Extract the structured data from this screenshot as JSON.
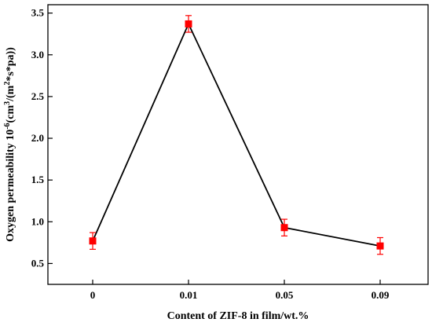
{
  "chart_data": {
    "type": "line",
    "xlabel": "Content of ZIF-8 in film/wt.%",
    "ylabel_parts": {
      "a": "Oxygen permeability 10",
      "a_sup": "-6",
      "b": "(cm",
      "b_sup": "3",
      "c": "/(m",
      "c_sup": "2",
      "d": "*s*pa))"
    },
    "categories": [
      "0",
      "0.01",
      "0.05",
      "0.09"
    ],
    "values": [
      0.77,
      3.37,
      0.93,
      0.71
    ],
    "errors": [
      0.1,
      0.1,
      0.1,
      0.1
    ],
    "ylim": [
      0.25,
      3.6
    ],
    "yticks": [
      0.5,
      1.0,
      1.5,
      2.0,
      2.5,
      3.0,
      3.5
    ],
    "ytick_labels": [
      "0.5",
      "1.0",
      "1.5",
      "2.0",
      "2.5",
      "3.0",
      "3.5"
    ],
    "grid": false,
    "line_color": "#000000",
    "marker_color": "#ff0000",
    "error_color": "#ff0000"
  }
}
